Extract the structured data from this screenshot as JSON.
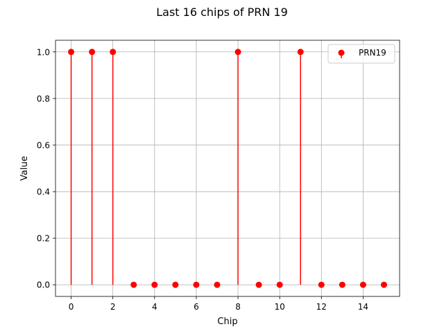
{
  "chart_data": {
    "type": "stem",
    "title": "Last 16 chips of PRN 19",
    "xlabel": "Chip",
    "ylabel": "Value",
    "x": [
      0,
      1,
      2,
      3,
      4,
      5,
      6,
      7,
      8,
      9,
      10,
      11,
      12,
      13,
      14,
      15
    ],
    "series": [
      {
        "name": "PRN19",
        "values": [
          1,
          1,
          1,
          0,
          0,
          0,
          0,
          0,
          1,
          0,
          0,
          1,
          0,
          0,
          0,
          0
        ],
        "color": "#ff0000"
      }
    ],
    "xlim": [
      -0.75,
      15.75
    ],
    "ylim": [
      -0.05,
      1.05
    ],
    "xticks": [
      0,
      2,
      4,
      6,
      8,
      10,
      12,
      14
    ],
    "xtick_labels": [
      "0",
      "2",
      "4",
      "6",
      "8",
      "10",
      "12",
      "14"
    ],
    "yticks": [
      0.0,
      0.2,
      0.4,
      0.6,
      0.8,
      1.0
    ],
    "ytick_labels": [
      "0.0",
      "0.2",
      "0.4",
      "0.6",
      "0.8",
      "1.0"
    ],
    "grid": true,
    "grid_color": "#b0b0b0",
    "legend": {
      "position": "top-right"
    }
  }
}
